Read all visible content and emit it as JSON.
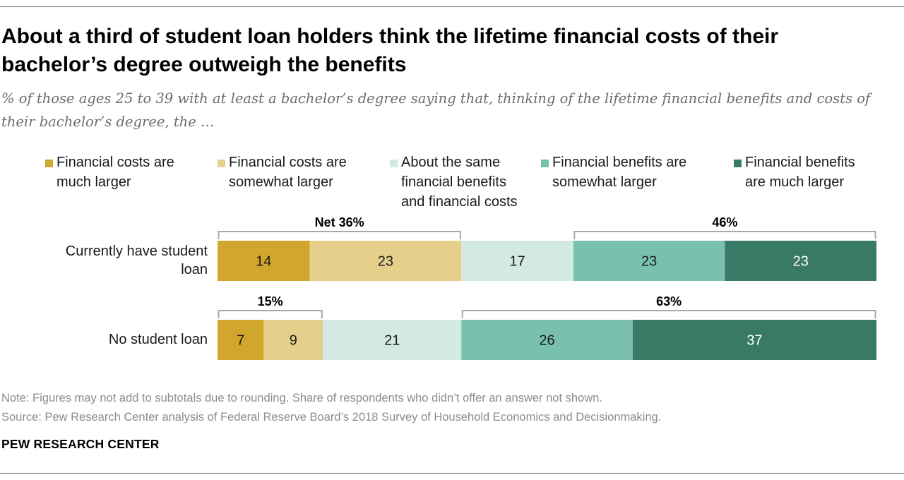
{
  "title": "About a third of student loan holders think the lifetime financial costs of their bachelor’s degree outweigh the benefits",
  "subtitle": "% of those ages 25 to 39 with at least a bachelor’s degree saying that, thinking of the lifetime financial benefits and costs of their bachelor’s degree, the …",
  "legend": [
    {
      "label": "Financial costs are\nmuch larger",
      "color": "#d1a62c"
    },
    {
      "label": "Financial costs are\nsomewhat larger",
      "color": "#e6cf8a"
    },
    {
      "label": "About the same\nfinancial benefits\nand financial costs",
      "color": "#d2e9e4"
    },
    {
      "label": "Financial benefits are\nsomewhat larger",
      "color": "#79c1ae"
    },
    {
      "label": "Financial benefits\nare much larger",
      "color": "#387a66"
    }
  ],
  "rows": [
    {
      "label": "Currently have student\nloan"
    },
    {
      "label": "No student loan"
    }
  ],
  "chart_data": {
    "type": "bar",
    "orientation": "horizontal",
    "stacked": true,
    "categories": [
      "Currently have student loan",
      "No student loan"
    ],
    "series": [
      {
        "name": "Financial costs are much larger",
        "values": [
          14,
          7
        ]
      },
      {
        "name": "Financial costs are somewhat larger",
        "values": [
          23,
          9
        ]
      },
      {
        "name": "About the same financial benefits and financial costs",
        "values": [
          17,
          21
        ]
      },
      {
        "name": "Financial benefits are somewhat larger",
        "values": [
          23,
          26
        ]
      },
      {
        "name": "Financial benefits are much larger",
        "values": [
          23,
          37
        ]
      }
    ],
    "nets": [
      {
        "row": 0,
        "side": "costs",
        "label": "Net 36%"
      },
      {
        "row": 0,
        "side": "benefits",
        "label": "46%"
      },
      {
        "row": 1,
        "side": "costs",
        "label": "15%"
      },
      {
        "row": 1,
        "side": "benefits",
        "label": "63%"
      }
    ],
    "label_color_light": "#ffffff",
    "label_color_dark": "#1a1a1a",
    "legend_position": "top"
  },
  "notes": {
    "note": "Note: Figures may not add to subtotals due to rounding. Share of respondents who didn’t offer an answer not shown.",
    "source": "Source: Pew Research Center analysis of Federal Reserve Board’s 2018 Survey of Household Economics and Decisionmaking."
  },
  "brand": "PEW RESEARCH CENTER"
}
